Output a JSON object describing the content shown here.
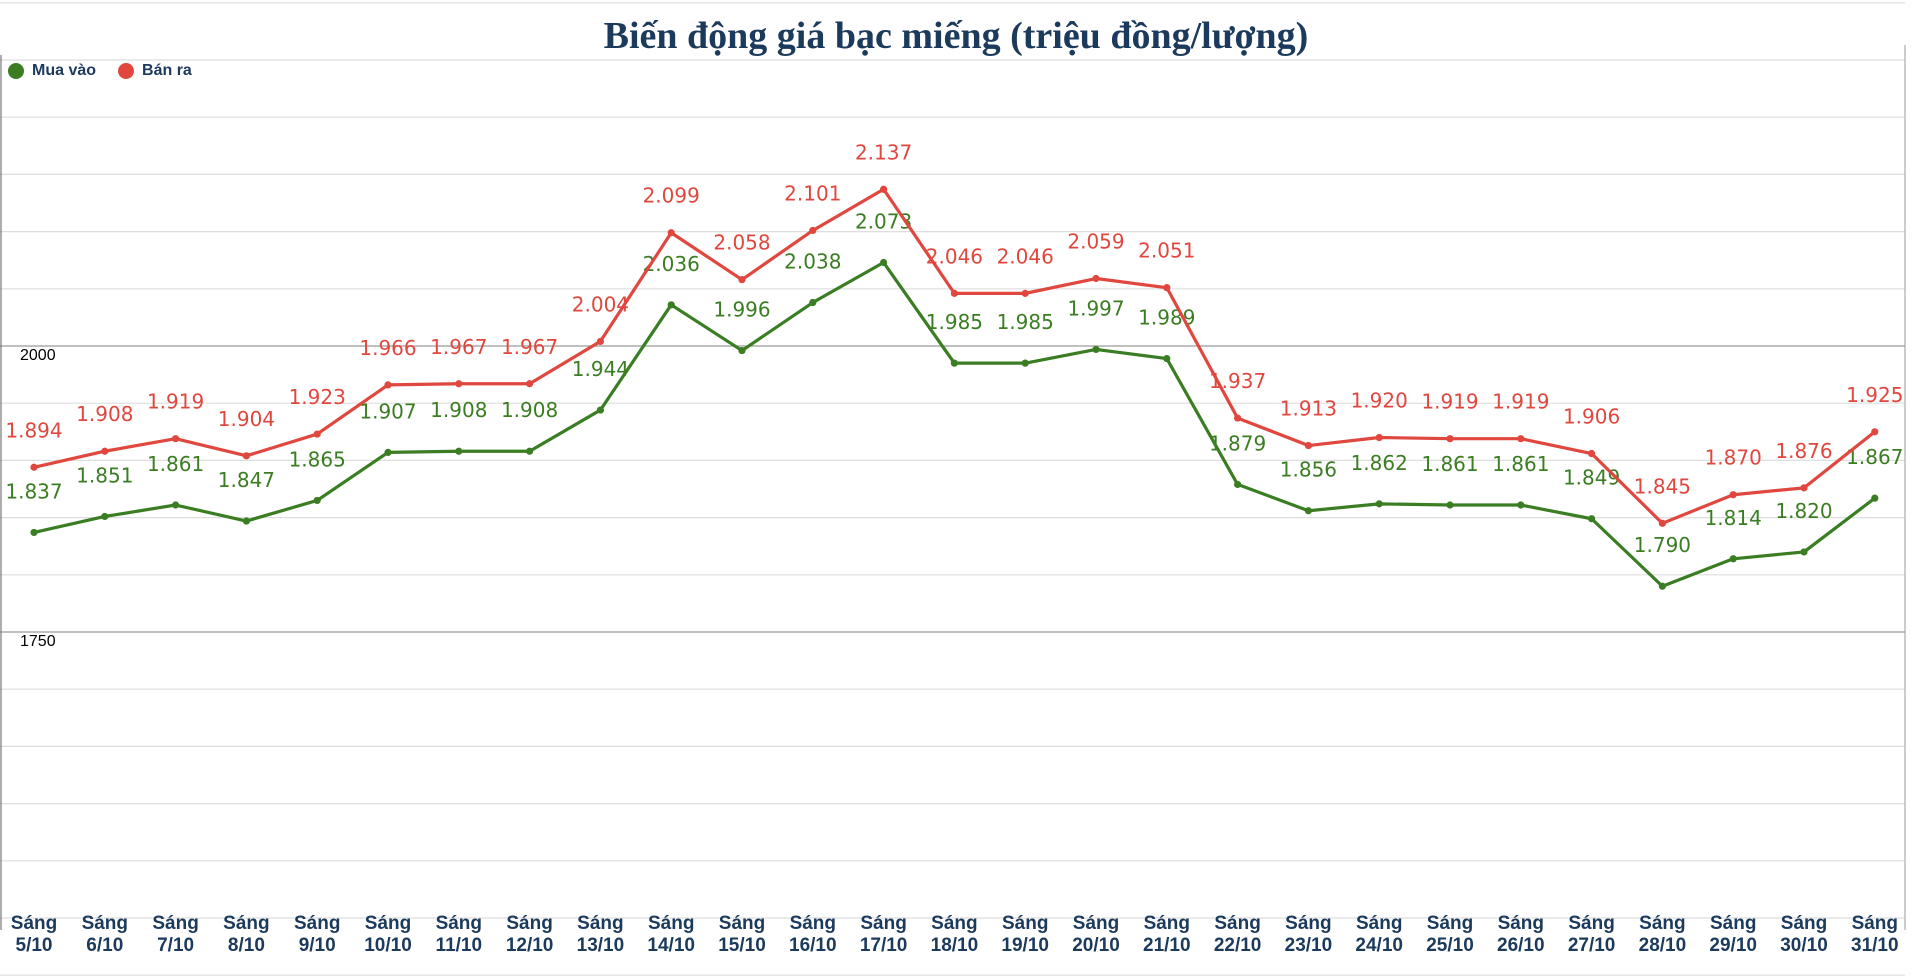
{
  "chart_data": {
    "type": "line",
    "title": "Biến động giá bạc miếng (triệu đồng/lượng)",
    "xlabel": "",
    "ylabel": "",
    "ylim": [
      1450,
      2300
    ],
    "y_ticks_labeled": [
      2000,
      1750
    ],
    "y_tick_labels": [
      "2000",
      "1750"
    ],
    "grid": true,
    "legend_position": "top-left",
    "categories": [
      [
        "Sáng",
        "5/10"
      ],
      [
        "Sáng",
        "6/10"
      ],
      [
        "Sáng",
        "7/10"
      ],
      [
        "Sáng",
        "8/10"
      ],
      [
        "Sáng",
        "9/10"
      ],
      [
        "Sáng",
        "10/10"
      ],
      [
        "Sáng",
        "11/10"
      ],
      [
        "Sáng",
        "12/10"
      ],
      [
        "Sáng",
        "13/10"
      ],
      [
        "Sáng",
        "14/10"
      ],
      [
        "Sáng",
        "15/10"
      ],
      [
        "Sáng",
        "16/10"
      ],
      [
        "Sáng",
        "17/10"
      ],
      [
        "Sáng",
        "18/10"
      ],
      [
        "Sáng",
        "19/10"
      ],
      [
        "Sáng",
        "20/10"
      ],
      [
        "Sáng",
        "21/10"
      ],
      [
        "Sáng",
        "22/10"
      ],
      [
        "Sáng",
        "23/10"
      ],
      [
        "Sáng",
        "24/10"
      ],
      [
        "Sáng",
        "25/10"
      ],
      [
        "Sáng",
        "26/10"
      ],
      [
        "Sáng",
        "27/10"
      ],
      [
        "Sáng",
        "28/10"
      ],
      [
        "Sáng",
        "29/10"
      ],
      [
        "Sáng",
        "30/10"
      ],
      [
        "Sáng",
        "31/10"
      ]
    ],
    "series": [
      {
        "name": "Mua vào",
        "color": "#3a7d22",
        "values": [
          1837,
          1851,
          1861,
          1847,
          1865,
          1907,
          1908,
          1908,
          1944,
          2036,
          1996,
          2038,
          2073,
          1985,
          1985,
          1997,
          1989,
          1879,
          1856,
          1862,
          1861,
          1861,
          1849,
          1790,
          1814,
          1820,
          1867
        ],
        "labels": [
          "1.837",
          "1.851",
          "1.861",
          "1.847",
          "1.865",
          "1.907",
          "1.908",
          "1.908",
          "1.944",
          "2.036",
          "1.996",
          "2.038",
          "2.073",
          "1.985",
          "1.985",
          "1.997",
          "1.989",
          "1.879",
          "1.856",
          "1.862",
          "1.861",
          "1.861",
          "1.849",
          "1.790",
          "1.814",
          "1.820",
          "1.867"
        ]
      },
      {
        "name": "Bán ra",
        "color": "#e0473e",
        "values": [
          1894,
          1908,
          1919,
          1904,
          1923,
          1966,
          1967,
          1967,
          2004,
          2099,
          2058,
          2101,
          2137,
          2046,
          2046,
          2059,
          2051,
          1937,
          1913,
          1920,
          1919,
          1919,
          1906,
          1845,
          1870,
          1876,
          1925
        ],
        "labels": [
          "1.894",
          "1.908",
          "1.919",
          "1.904",
          "1.923",
          "1.966",
          "1.967",
          "1.967",
          "2.004",
          "2.099",
          "2.058",
          "2.101",
          "2.137",
          "2.046",
          "2.046",
          "2.059",
          "2.051",
          "1.937",
          "1.913",
          "1.920",
          "1.919",
          "1.919",
          "1.906",
          "1.845",
          "1.870",
          "1.876",
          "1.925"
        ]
      }
    ]
  }
}
